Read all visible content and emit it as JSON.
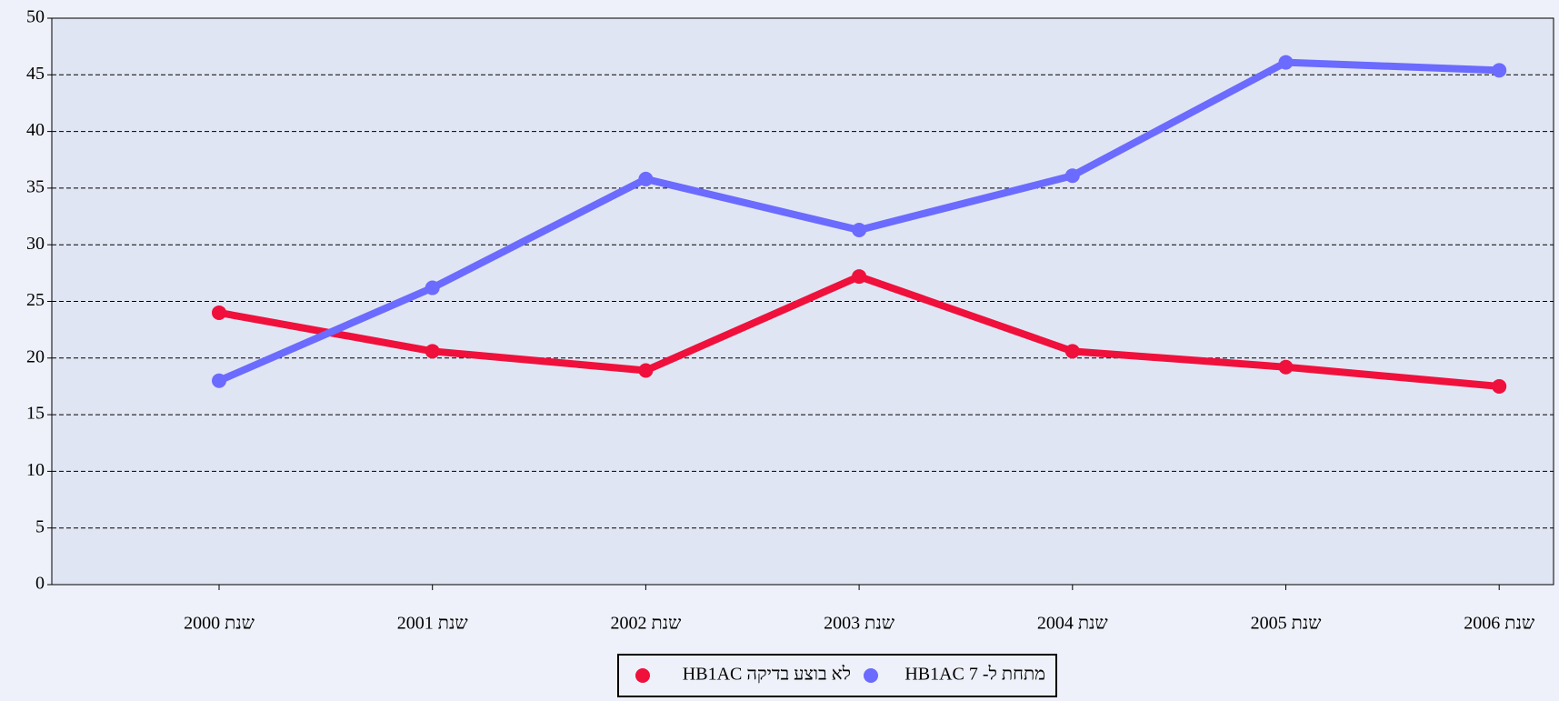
{
  "chart_data": {
    "type": "line",
    "categories": [
      "שנת 2000",
      "שנת 2001",
      "שנת 2002",
      "שנת 2003",
      "שנת 2004",
      "שנת 2005",
      "שנת 2006"
    ],
    "series": [
      {
        "name": "לא בוצע בדיקה HB1AC",
        "color": "#f0103c",
        "values": [
          24,
          20.6,
          18.9,
          27.2,
          20.6,
          19.2,
          17.5
        ]
      },
      {
        "name": "מתחת ל- 7 HB1AC",
        "color": "#6b6bff",
        "values": [
          18,
          26.2,
          35.8,
          31.3,
          36.1,
          46.1,
          45.4
        ]
      }
    ],
    "ylim": [
      0,
      50
    ],
    "yticks": [
      0,
      5,
      10,
      15,
      20,
      25,
      30,
      35,
      40,
      45,
      50
    ],
    "grid": true
  }
}
